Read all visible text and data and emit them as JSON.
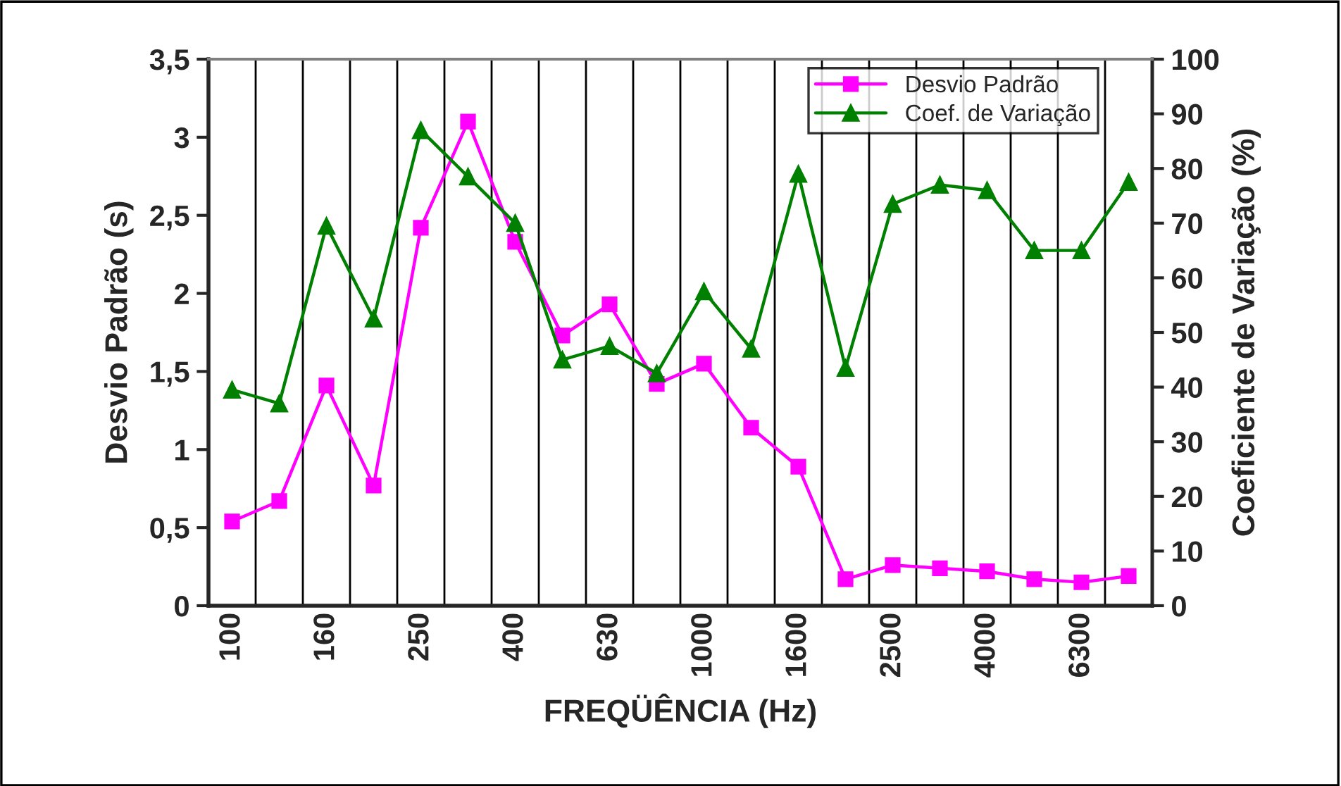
{
  "chart_data": {
    "type": "line",
    "categories": [
      "100",
      null,
      "160",
      null,
      "250",
      null,
      "400",
      null,
      "630",
      null,
      "1000",
      null,
      "1600",
      null,
      "2500",
      null,
      "4000",
      null,
      "6300",
      null
    ],
    "series": [
      {
        "name": "Desvio Padrão",
        "color": "#ff00ff",
        "marker": "square",
        "values": [
          0.54,
          0.67,
          1.41,
          0.77,
          2.42,
          3.1,
          2.33,
          1.73,
          1.93,
          1.42,
          1.55,
          1.14,
          0.89,
          0.17,
          0.26,
          0.24,
          0.22,
          0.17,
          0.15,
          0.19
        ]
      },
      {
        "name": "Coef. de Variação",
        "color": "#008000",
        "marker": "triangle",
        "axis": "y2",
        "values": [
          39.5,
          37,
          69.5,
          52.5,
          87,
          78.5,
          70,
          45,
          47.5,
          42.5,
          57.5,
          47,
          79,
          43.5,
          73.5,
          77,
          76,
          65,
          65,
          77.5
        ]
      }
    ],
    "xlabel": "FREQÜÊNCIA (Hz)",
    "ylabel": "Desvio Padrão (s)",
    "y2label": "Coeficiente de Variação (%)",
    "ylim": [
      0,
      3.5
    ],
    "yticks": [
      0,
      {
        "value": 0.5,
        "label": "0,5"
      },
      1,
      {
        "value": 1.5,
        "label": "1,5"
      },
      2,
      {
        "value": 2.5,
        "label": "2,5"
      },
      3,
      {
        "value": 3.5,
        "label": "3,5"
      }
    ],
    "y2lim": [
      0,
      100
    ],
    "y2ticks": [
      0,
      10,
      20,
      30,
      40,
      50,
      60,
      70,
      80,
      90,
      100
    ],
    "grid": "x",
    "legend": "top right"
  }
}
